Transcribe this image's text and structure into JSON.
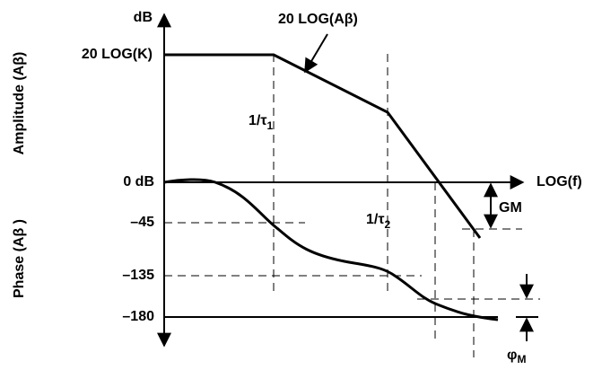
{
  "axis": {
    "y_unit": "dB",
    "x_label": "LOG(f)"
  },
  "amplitude": {
    "side_label": "Amplitude (Aβ)",
    "k_label": "20 LOG(K)",
    "zero_label": "0 dB",
    "curve_label": "20 LOG(Aβ)"
  },
  "phase": {
    "side_label": "Phase (Aβ )",
    "tick_labels": [
      "–45",
      "–135",
      "–180"
    ]
  },
  "poles": [
    {
      "text": "1/τ",
      "sub": "1"
    },
    {
      "text": "1/τ",
      "sub": "2"
    }
  ],
  "margins": {
    "gain": "GM",
    "phase": {
      "text": "φ",
      "sub": "M"
    }
  }
}
